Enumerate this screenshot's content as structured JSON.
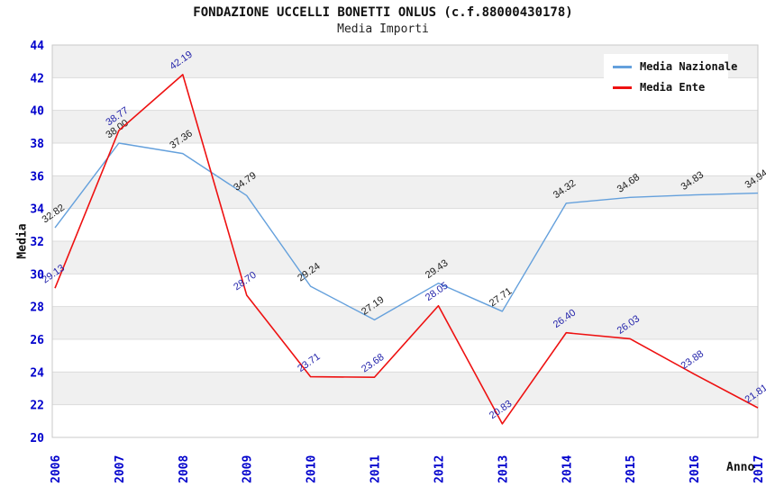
{
  "chart_data": {
    "type": "line",
    "title": "FONDAZIONE UCCELLI BONETTI ONLUS (c.f.88000430178)",
    "subtitle": "Media Importi",
    "xlabel": "Anno",
    "ylabel": "Media",
    "x": [
      "2006",
      "2007",
      "2008",
      "2009",
      "2010",
      "2011",
      "2012",
      "2013",
      "2014",
      "2015",
      "2016",
      "2017"
    ],
    "ylim": [
      20,
      44
    ],
    "yticks": [
      20,
      22,
      24,
      26,
      28,
      30,
      32,
      34,
      36,
      38,
      40,
      42,
      44
    ],
    "grid": "horizontal gridlines with alternating gray/white bands every 2 units",
    "legend_position": "top-right",
    "series": [
      {
        "name": "Media Nazionale",
        "color": "#64A0DC",
        "label_color": "#1a1a1a",
        "values": [
          32.82,
          38.0,
          37.36,
          34.79,
          29.24,
          27.19,
          29.43,
          27.71,
          34.32,
          34.68,
          34.83,
          34.94
        ]
      },
      {
        "name": "Media Ente",
        "color": "#EE1111",
        "label_color": "#2222AA",
        "values": [
          29.13,
          38.77,
          42.19,
          28.7,
          23.71,
          23.68,
          28.05,
          20.83,
          26.4,
          26.03,
          23.88,
          21.81
        ]
      }
    ],
    "colors": {
      "axis_tick_label": "#0000CC",
      "band_gray": "#F0F0F0",
      "gridline": "#DCDCDC",
      "plot_border": "#C9C9C9"
    }
  }
}
